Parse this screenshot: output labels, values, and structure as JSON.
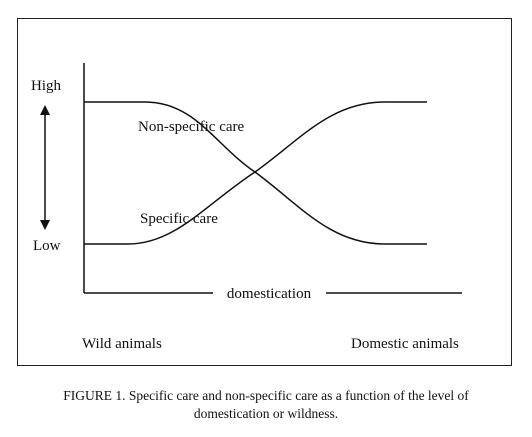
{
  "diagram": {
    "axis": {
      "high_label": "High",
      "low_label": "Low",
      "x_axis_label": "domestication"
    },
    "curves": [
      {
        "id": "non-specific",
        "label": "Non-specific care",
        "start_level": "High",
        "end_level": "Low"
      },
      {
        "id": "specific",
        "label": "Specific care",
        "start_level": "Low",
        "end_level": "High"
      }
    ],
    "endpoints": {
      "left": "Wild animals",
      "right": "Domestic animals"
    }
  },
  "caption": {
    "line1": "FIGURE 1. Specific care and non-specific care as a function of the level of",
    "line2": "domestication or wildness."
  },
  "colors": {
    "ink": "#111111",
    "background": "#ffffff"
  }
}
